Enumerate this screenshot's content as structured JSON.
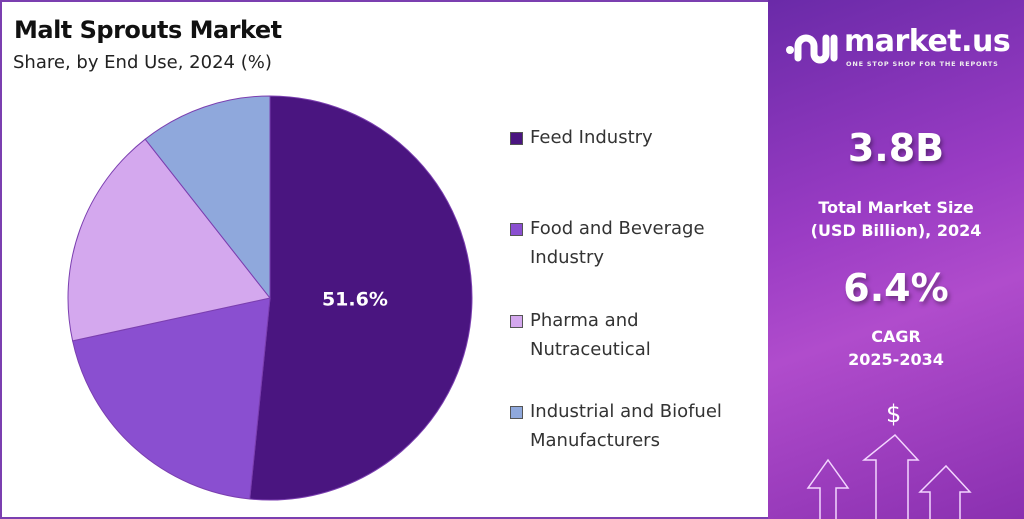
{
  "chart_data": {
    "type": "pie",
    "title": "Malt Sprouts Market",
    "subtitle": "Share, by End Use, 2024 (%)",
    "categories": [
      "Feed Industry",
      "Food and Beverage Industry",
      "Pharma and Nutraceutical",
      "Industrial and Biofuel Manufacturers"
    ],
    "values": [
      51.6,
      20.0,
      17.8,
      10.6
    ],
    "colors": [
      "#4a1580",
      "#8a4fd0",
      "#d4a8ee",
      "#8fa8dc"
    ],
    "data_labels": [
      "51.6%",
      "",
      "",
      ""
    ],
    "legend_position": "right"
  },
  "panel": {
    "brand": "market.us",
    "tagline": "ONE STOP SHOP FOR THE REPORTS",
    "market_size": "3.8B",
    "market_size_label_1": "Total Market Size",
    "market_size_label_2": "(USD Billion), 2024",
    "cagr": "6.4%",
    "cagr_label_1": "CAGR",
    "cagr_label_2": "2025-2034",
    "dollar_symbol": "$"
  }
}
